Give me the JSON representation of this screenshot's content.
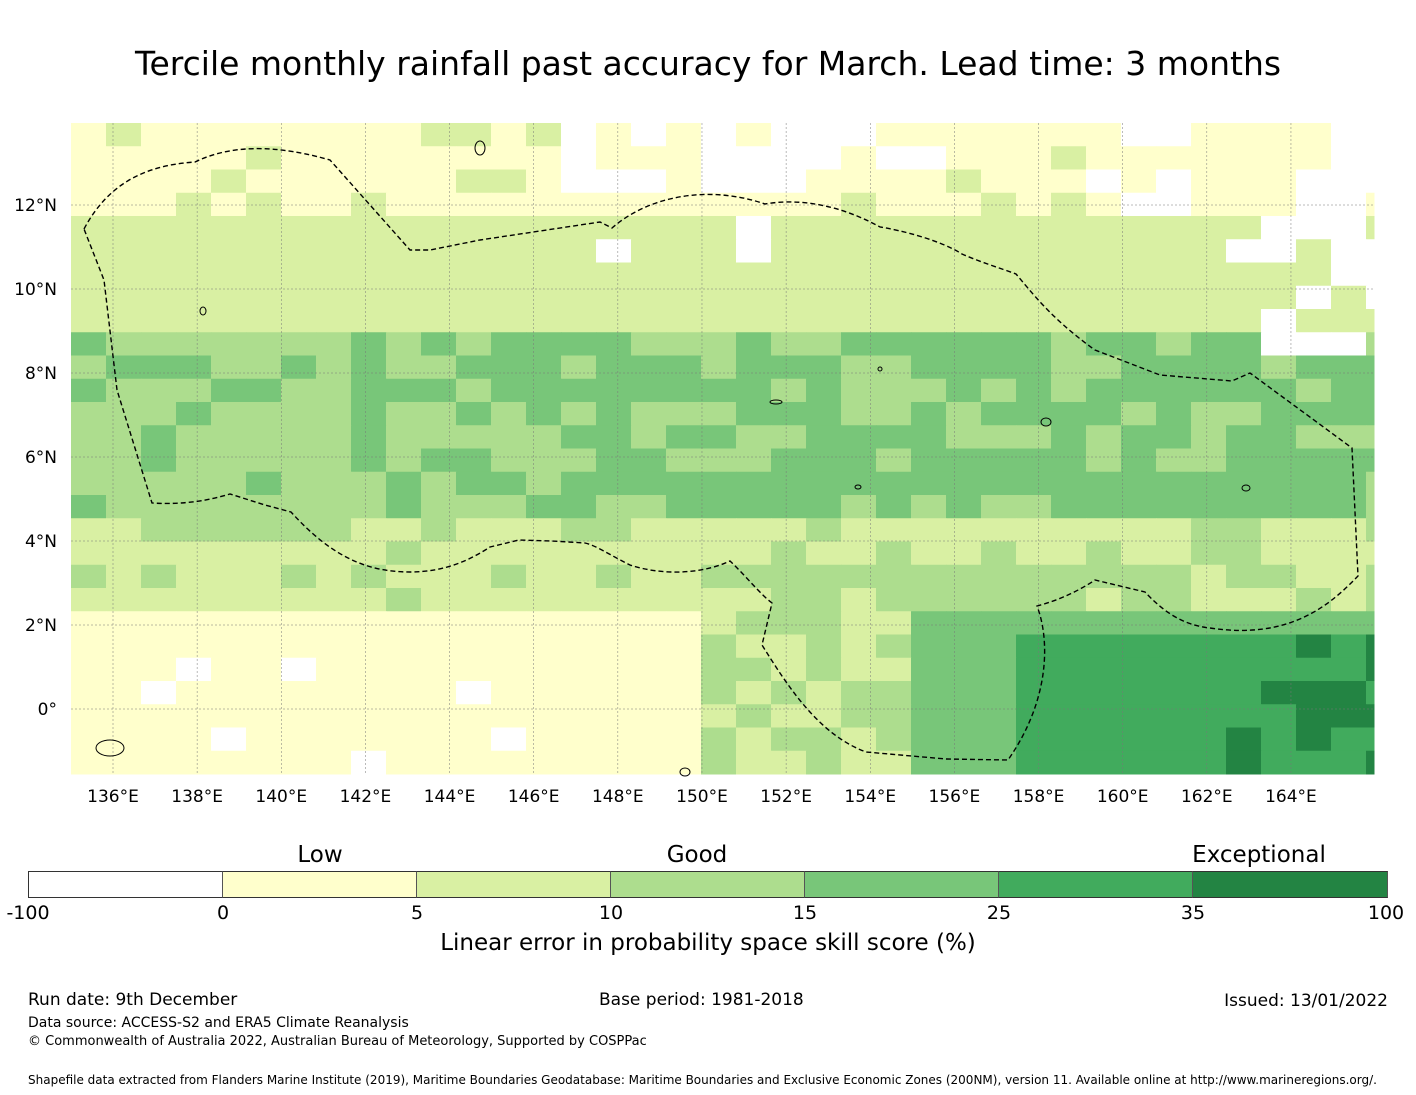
{
  "title": "Tercile monthly rainfall past accuracy for March. Lead time: 3 months",
  "map": {
    "lon_range": [
      135.0,
      166.0
    ],
    "lat_range": [
      -1.6,
      14.0
    ],
    "grid_step_deg": 0.8333,
    "lon_ticks": [
      "136°E",
      "138°E",
      "140°E",
      "142°E",
      "144°E",
      "146°E",
      "148°E",
      "150°E",
      "152°E",
      "154°E",
      "156°E",
      "158°E",
      "160°E",
      "162°E",
      "164°E"
    ],
    "lat_ticks": [
      "12°N",
      "10°N",
      "8°N",
      "6°N",
      "4°N",
      "2°N",
      "0°"
    ],
    "boundary": "Federated States of Micronesia EEZ (dashed outline)",
    "skill_field": "Linear error in probability space skill score (%) per grid cell"
  },
  "colorbar": {
    "category_labels": [
      "Low",
      "Good",
      "Exceptional"
    ],
    "tick_labels": [
      "-100",
      "0",
      "5",
      "10",
      "15",
      "25",
      "35",
      "100"
    ],
    "colors": [
      "#ffffff",
      "#ffffcc",
      "#d9f0a3",
      "#addd8e",
      "#78c679",
      "#41ab5d",
      "#238443"
    ],
    "title": "Linear error in probability space skill score (%)"
  },
  "footer": {
    "run_date": "Run date: 9th December",
    "base_period": "Base period: 1981-2018",
    "issued": "Issued: 13/01/2022",
    "data_source": "Data source: ACCESS-S2 and ERA5 Climate Reanalysis",
    "copyright": "© Commonwealth of Australia 2022, Australian Bureau of Meteorology, Supported by COSPPac",
    "shapefile": "Shapefile data extracted from Flanders Marine Institute (2019), Maritime Boundaries Geodatabase: Maritime Boundaries and Exclusive Economic Zones (200NM), version 11. Available online at http://www.marineregions.org/."
  }
}
